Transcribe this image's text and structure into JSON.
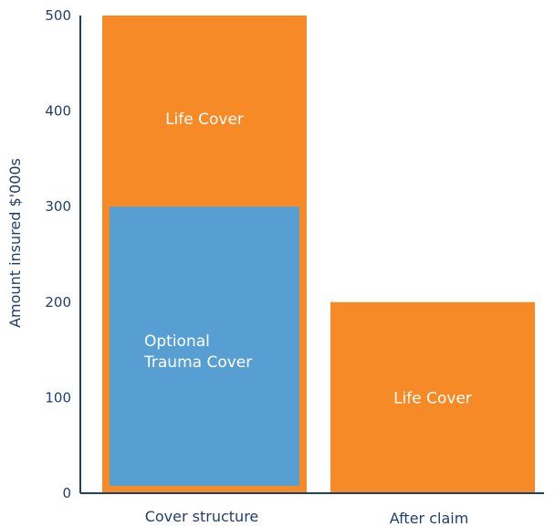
{
  "chart_data": {
    "type": "bar",
    "ylabel": "Amount insured $'000s",
    "ylim": [
      0,
      500
    ],
    "yticks": [
      "0",
      "100",
      "200",
      "300",
      "400",
      "500"
    ],
    "categories": [
      "Cover structure",
      "After claim"
    ],
    "bars": [
      {
        "category": "Cover structure",
        "value": 500,
        "label": "Life Cover",
        "color": "#f58a26"
      },
      {
        "category": "Cover structure",
        "value": 300,
        "label_lines": [
          "Optional",
          "Trauma Cover"
        ],
        "color": "#579fd3",
        "inset": true
      },
      {
        "category": "After claim",
        "value": 200,
        "label": "Life Cover",
        "color": "#f58a26"
      }
    ],
    "axis_color": "#1f3f6e",
    "grid": false
  }
}
